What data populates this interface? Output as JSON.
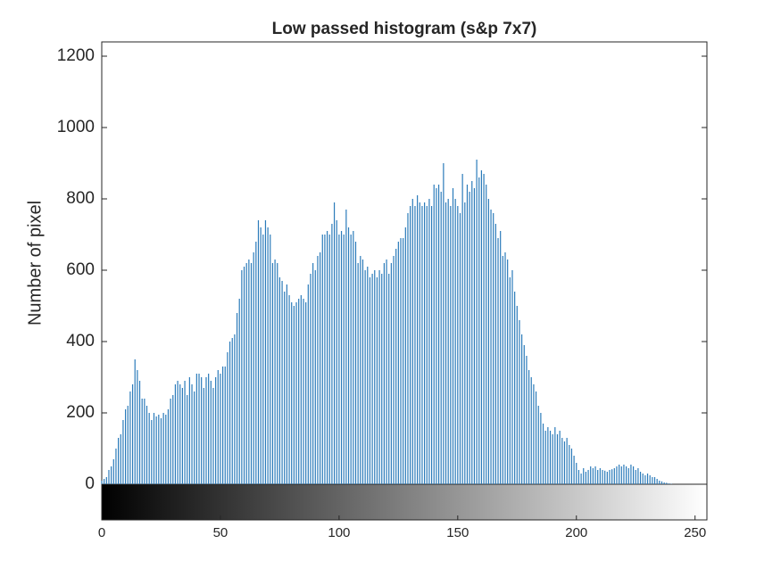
{
  "chart_data": {
    "type": "stem",
    "title": "Low passed histogram (s&p 7x7)",
    "y_label": "Number of pixel",
    "color": "#2b7bba",
    "x": [
      0,
      1,
      2,
      3,
      4,
      5,
      6,
      7,
      8,
      9,
      10,
      11,
      12,
      13,
      14,
      15,
      16,
      17,
      18,
      19,
      20,
      21,
      22,
      23,
      24,
      25,
      26,
      27,
      28,
      29,
      30,
      31,
      32,
      33,
      34,
      35,
      36,
      37,
      38,
      39,
      40,
      41,
      42,
      43,
      44,
      45,
      46,
      47,
      48,
      49,
      50,
      51,
      52,
      53,
      54,
      55,
      56,
      57,
      58,
      59,
      60,
      61,
      62,
      63,
      64,
      65,
      66,
      67,
      68,
      69,
      70,
      71,
      72,
      73,
      74,
      75,
      76,
      77,
      78,
      79,
      80,
      81,
      82,
      83,
      84,
      85,
      86,
      87,
      88,
      89,
      90,
      91,
      92,
      93,
      94,
      95,
      96,
      97,
      98,
      99,
      100,
      101,
      102,
      103,
      104,
      105,
      106,
      107,
      108,
      109,
      110,
      111,
      112,
      113,
      114,
      115,
      116,
      117,
      118,
      119,
      120,
      121,
      122,
      123,
      124,
      125,
      126,
      127,
      128,
      129,
      130,
      131,
      132,
      133,
      134,
      135,
      136,
      137,
      138,
      139,
      140,
      141,
      142,
      143,
      144,
      145,
      146,
      147,
      148,
      149,
      150,
      151,
      152,
      153,
      154,
      155,
      156,
      157,
      158,
      159,
      160,
      161,
      162,
      163,
      164,
      165,
      166,
      167,
      168,
      169,
      170,
      171,
      172,
      173,
      174,
      175,
      176,
      177,
      178,
      179,
      180,
      181,
      182,
      183,
      184,
      185,
      186,
      187,
      188,
      189,
      190,
      191,
      192,
      193,
      194,
      195,
      196,
      197,
      198,
      199,
      200,
      201,
      202,
      203,
      204,
      205,
      206,
      207,
      208,
      209,
      210,
      211,
      212,
      213,
      214,
      215,
      216,
      217,
      218,
      219,
      220,
      221,
      222,
      223,
      224,
      225,
      226,
      227,
      228,
      229,
      230,
      231,
      232,
      233,
      234,
      235,
      236,
      237,
      238,
      239,
      240,
      241,
      242,
      243,
      244,
      245,
      246,
      247,
      248,
      249,
      250,
      251,
      252,
      253,
      254,
      255
    ],
    "values": [
      10,
      15,
      20,
      40,
      50,
      70,
      100,
      130,
      140,
      180,
      210,
      220,
      260,
      280,
      350,
      320,
      290,
      240,
      240,
      220,
      200,
      180,
      200,
      190,
      195,
      185,
      200,
      195,
      210,
      240,
      250,
      280,
      290,
      280,
      270,
      290,
      250,
      300,
      280,
      260,
      310,
      310,
      300,
      270,
      300,
      310,
      290,
      270,
      300,
      320,
      310,
      330,
      330,
      370,
      400,
      410,
      420,
      480,
      520,
      600,
      610,
      620,
      630,
      620,
      650,
      680,
      740,
      720,
      700,
      740,
      720,
      700,
      620,
      630,
      620,
      580,
      570,
      540,
      560,
      530,
      510,
      500,
      510,
      520,
      530,
      520,
      510,
      560,
      590,
      620,
      600,
      640,
      650,
      700,
      700,
      710,
      700,
      730,
      790,
      740,
      700,
      710,
      700,
      770,
      720,
      700,
      710,
      680,
      620,
      640,
      630,
      600,
      610,
      580,
      590,
      600,
      580,
      600,
      590,
      620,
      630,
      590,
      620,
      640,
      660,
      680,
      690,
      690,
      720,
      760,
      780,
      800,
      780,
      810,
      790,
      780,
      790,
      780,
      800,
      780,
      840,
      830,
      840,
      820,
      900,
      790,
      800,
      780,
      830,
      800,
      780,
      760,
      870,
      790,
      840,
      820,
      850,
      830,
      910,
      860,
      880,
      870,
      840,
      800,
      770,
      760,
      730,
      690,
      710,
      640,
      650,
      630,
      580,
      600,
      540,
      500,
      460,
      420,
      390,
      360,
      320,
      300,
      280,
      260,
      220,
      200,
      170,
      150,
      160,
      150,
      140,
      160,
      140,
      150,
      130,
      120,
      130,
      110,
      100,
      80,
      60,
      40,
      30,
      45,
      35,
      40,
      50,
      45,
      50,
      40,
      45,
      40,
      38,
      35,
      40,
      42,
      45,
      50,
      55,
      50,
      55,
      50,
      45,
      55,
      50,
      40,
      45,
      35,
      30,
      25,
      30,
      25,
      20,
      20,
      15,
      10,
      8,
      5,
      4,
      2,
      1,
      0,
      0,
      0,
      0,
      0,
      0,
      0,
      0,
      0,
      0,
      0,
      0,
      0,
      0,
      0
    ],
    "xlim": [
      0,
      255
    ],
    "ylim": [
      0,
      1240
    ],
    "xticks": [
      0,
      50,
      100,
      150,
      200,
      250
    ],
    "yticks": [
      0,
      200,
      400,
      600,
      800,
      1000,
      1200
    ]
  }
}
